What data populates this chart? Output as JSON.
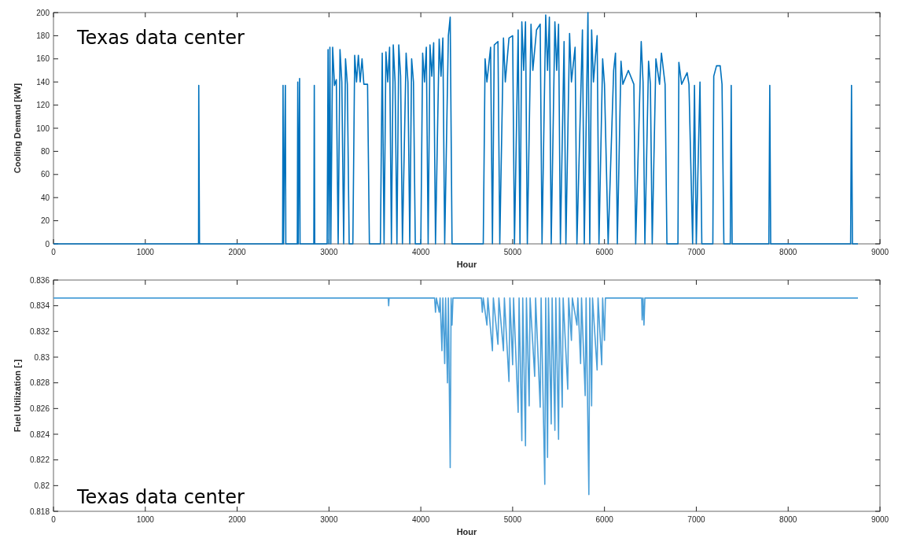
{
  "chart_data": [
    {
      "type": "line",
      "xlabel": "Hour",
      "ylabel": "Cooling Demand [kW]",
      "annotations": [
        "Texas data center"
      ],
      "xlim": [
        0,
        9000
      ],
      "ylim": [
        0,
        200
      ],
      "xticks": [
        0,
        1000,
        2000,
        3000,
        4000,
        5000,
        6000,
        7000,
        8000,
        9000
      ],
      "yticks": [
        0,
        20,
        40,
        60,
        80,
        100,
        120,
        140,
        160,
        180,
        200
      ],
      "grid": false,
      "marker": "none",
      "line_style": "solid",
      "series": [
        {
          "color": "#0072bd",
          "x": [
            0,
            1580,
            1582,
            1590,
            2495,
            2500,
            2505,
            2525,
            2530,
            2655,
            2660,
            2665,
            2680,
            2685,
            2835,
            2840,
            2845,
            2980,
            2990,
            3000,
            3010,
            3020,
            3040,
            3060,
            3080,
            3100,
            3120,
            3140,
            3160,
            3180,
            3200,
            3220,
            3260,
            3280,
            3300,
            3320,
            3340,
            3360,
            3380,
            3420,
            3440,
            3560,
            3580,
            3600,
            3620,
            3640,
            3660,
            3680,
            3700,
            3720,
            3740,
            3760,
            3780,
            3800,
            3840,
            3860,
            3880,
            3900,
            3920,
            3940,
            4000,
            4020,
            4040,
            4060,
            4080,
            4100,
            4120,
            4140,
            4160,
            4200,
            4220,
            4240,
            4260,
            4300,
            4320,
            4340,
            4680,
            4700,
            4720,
            4760,
            4780,
            4800,
            4840,
            4860,
            4900,
            4920,
            4960,
            5000,
            5020,
            5060,
            5080,
            5100,
            5120,
            5140,
            5160,
            5200,
            5220,
            5260,
            5300,
            5320,
            5360,
            5380,
            5400,
            5420,
            5460,
            5480,
            5500,
            5520,
            5560,
            5580,
            5620,
            5640,
            5680,
            5700,
            5760,
            5780,
            5820,
            5840,
            5860,
            5880,
            5920,
            5940,
            5980,
            6000,
            6040,
            6100,
            6120,
            6140,
            6180,
            6200,
            6260,
            6320,
            6340,
            6400,
            6420,
            6440,
            6480,
            6500,
            6520,
            6560,
            6600,
            6620,
            6660,
            6680,
            6800,
            6810,
            6840,
            6900,
            6920,
            6960,
            6980,
            7000,
            7040,
            7060,
            7180,
            7190,
            7220,
            7260,
            7280,
            7300,
            7370,
            7380,
            7390,
            7790,
            7800,
            7810,
            8680,
            8690,
            8700,
            8760
          ],
          "values": [
            0,
            0,
            137,
            0,
            0,
            137,
            0,
            137,
            0,
            0,
            140,
            0,
            143,
            0,
            0,
            137,
            0,
            0,
            168,
            0,
            170,
            0,
            170,
            137,
            142,
            0,
            168,
            140,
            0,
            160,
            138,
            0,
            0,
            163,
            140,
            163,
            140,
            160,
            138,
            138,
            0,
            0,
            165,
            0,
            166,
            140,
            170,
            0,
            172,
            140,
            0,
            172,
            145,
            0,
            165,
            140,
            0,
            160,
            140,
            0,
            0,
            165,
            140,
            170,
            0,
            172,
            145,
            174,
            0,
            177,
            145,
            178,
            0,
            180,
            196,
            0,
            0,
            160,
            140,
            170,
            0,
            172,
            175,
            0,
            178,
            140,
            178,
            180,
            0,
            185,
            0,
            192,
            150,
            192,
            0,
            190,
            150,
            185,
            190,
            0,
            198,
            150,
            196,
            0,
            192,
            150,
            190,
            0,
            175,
            0,
            182,
            140,
            170,
            0,
            185,
            0,
            200,
            0,
            185,
            140,
            180,
            0,
            160,
            138,
            0,
            150,
            165,
            0,
            158,
            138,
            150,
            138,
            0,
            175,
            140,
            0,
            158,
            138,
            0,
            160,
            138,
            165,
            138,
            0,
            0,
            157,
            138,
            148,
            138,
            0,
            137,
            0,
            140,
            0,
            0,
            145,
            154,
            154,
            138,
            0,
            0,
            137,
            0,
            0,
            137,
            0,
            0,
            137,
            0,
            0
          ]
        }
      ]
    },
    {
      "type": "line",
      "xlabel": "Hour",
      "ylabel": "Fuel Utilization [-]",
      "annotations": [
        "Texas data center"
      ],
      "xlim": [
        0,
        9000
      ],
      "ylim": [
        0.818,
        0.836
      ],
      "xticks": [
        0,
        1000,
        2000,
        3000,
        4000,
        5000,
        6000,
        7000,
        8000,
        9000
      ],
      "yticks": [
        0.818,
        0.82,
        0.822,
        0.824,
        0.826,
        0.828,
        0.83,
        0.832,
        0.834,
        0.836
      ],
      "grid": false,
      "marker": "none",
      "line_style": "solid",
      "series": [
        {
          "color": "#4a9fd8",
          "x": [
            0,
            3645,
            3650,
            3655,
            4150,
            4160,
            4170,
            4200,
            4210,
            4230,
            4240,
            4260,
            4270,
            4290,
            4300,
            4320,
            4330,
            4340,
            4350,
            4660,
            4670,
            4680,
            4720,
            4730,
            4780,
            4790,
            4840,
            4850,
            4900,
            4910,
            4960,
            4970,
            5000,
            5010,
            5060,
            5070,
            5100,
            5110,
            5140,
            5150,
            5180,
            5190,
            5240,
            5250,
            5300,
            5310,
            5350,
            5360,
            5380,
            5390,
            5420,
            5430,
            5460,
            5470,
            5500,
            5510,
            5540,
            5550,
            5600,
            5610,
            5640,
            5650,
            5700,
            5710,
            5740,
            5750,
            5790,
            5800,
            5830,
            5840,
            5860,
            5870,
            5920,
            5930,
            5970,
            5980,
            6000,
            6010,
            6405,
            6410,
            6420,
            6430,
            6440,
            8760
          ],
          "values": [
            0.8346,
            0.8346,
            0.834,
            0.8346,
            0.8346,
            0.8335,
            0.8346,
            0.8335,
            0.8346,
            0.8305,
            0.8346,
            0.8295,
            0.8346,
            0.828,
            0.8346,
            0.8214,
            0.8346,
            0.8325,
            0.8346,
            0.8346,
            0.8335,
            0.8346,
            0.8325,
            0.8346,
            0.8305,
            0.8346,
            0.831,
            0.8346,
            0.8305,
            0.8346,
            0.8281,
            0.8346,
            0.8294,
            0.8346,
            0.8257,
            0.8346,
            0.8235,
            0.8346,
            0.8231,
            0.8346,
            0.8262,
            0.8346,
            0.8285,
            0.8346,
            0.8261,
            0.8346,
            0.8201,
            0.8346,
            0.8222,
            0.8346,
            0.8248,
            0.8346,
            0.8243,
            0.8346,
            0.8236,
            0.8346,
            0.8261,
            0.8346,
            0.8275,
            0.8346,
            0.8313,
            0.8346,
            0.8325,
            0.8346,
            0.8295,
            0.8346,
            0.827,
            0.8346,
            0.8193,
            0.8346,
            0.8262,
            0.8346,
            0.829,
            0.8346,
            0.8294,
            0.8346,
            0.8313,
            0.8346,
            0.8346,
            0.8329,
            0.8346,
            0.8325,
            0.8346,
            0.8346
          ]
        }
      ]
    }
  ]
}
